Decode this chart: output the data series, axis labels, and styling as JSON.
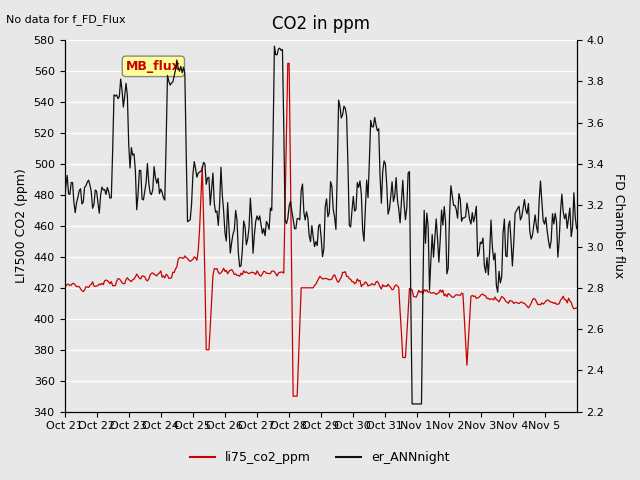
{
  "title": "CO2 in ppm",
  "top_left_text": "No data for f_FD_Flux",
  "ylabel_left": "LI7500 CO2 (ppm)",
  "ylabel_right": "FD Chamber flux",
  "ylim_left": [
    340,
    580
  ],
  "ylim_right": [
    2.2,
    4.0
  ],
  "yticks_left": [
    340,
    360,
    380,
    400,
    420,
    440,
    460,
    480,
    500,
    520,
    540,
    560,
    580
  ],
  "yticks_right": [
    2.2,
    2.4,
    2.6,
    2.8,
    3.0,
    3.2,
    3.4,
    3.6,
    3.8,
    4.0
  ],
  "xtick_labels": [
    "Oct 21",
    "Oct 22",
    "Oct 23",
    "Oct 24",
    "Oct 25",
    "Oct 26",
    "Oct 27",
    "Oct 28",
    "Oct 29",
    "Oct 30",
    "Oct 31",
    "Nov 1",
    "Nov 2",
    "Nov 3",
    "Nov 4",
    "Nov 5"
  ],
  "legend_entries": [
    "li75_co2_ppm",
    "er_ANNnight"
  ],
  "legend_colors": [
    "#cc0000",
    "#111111"
  ],
  "line_red_color": "#cc0000",
  "line_black_color": "#111111",
  "background_color": "#e8e8e8",
  "plot_bg_color": "#e8e8e8",
  "grid_color": "#ffffff",
  "mb_flux_box_color": "#ffff99",
  "mb_flux_text_color": "#cc0000",
  "mb_flux_label": "MB_flux",
  "title_fontsize": 12,
  "label_fontsize": 9,
  "tick_fontsize": 8
}
